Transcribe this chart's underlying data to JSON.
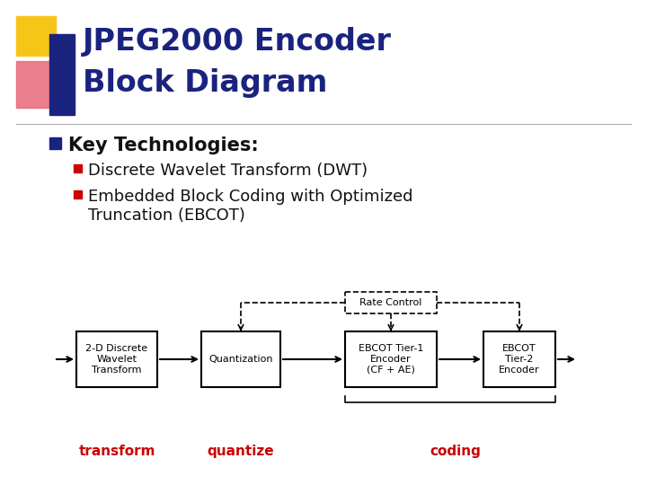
{
  "title_line1": "JPEG2000 Encoder",
  "title_line2": "Block Diagram",
  "title_color": "#1a237e",
  "bg_color": "#ffffff",
  "bullet_color": "#1a237e",
  "sub_bullet_color": "#cc0000",
  "key_tech_text": "Key Technologies:",
  "bullet1": "Discrete Wavelet Transform (DWT)",
  "bullet2_line1": "Embedded Block Coding with Optimized",
  "bullet2_line2": "Truncation (EBCOT)",
  "box1_label": "2-D Discrete\nWavelet\nTransform",
  "box2_label": "Quantization",
  "box3_label": "EBCOT Tier-1\nEncoder\n(CF + AE)",
  "box4_label": "EBCOT\nTier-2\nEncoder",
  "rate_control_label": "Rate Control",
  "label1": "transform",
  "label2": "quantize",
  "label3": "coding",
  "label_color": "#cc0000",
  "yellow_color": "#f5c518",
  "pink_color": "#e8697a",
  "blue_color": "#1a237e"
}
